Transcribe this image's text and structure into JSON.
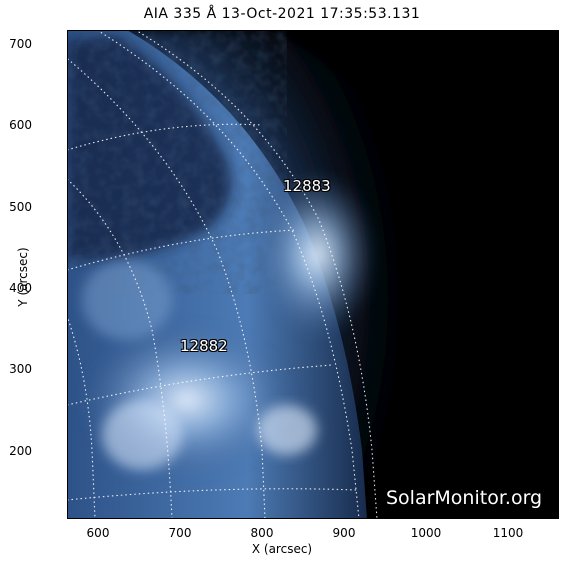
{
  "title": "AIA 335 Å 13-Oct-2021 17:35:53.131",
  "x_axis": {
    "label": "X (arcsec)",
    "range": [
      560,
      1160
    ],
    "ticks": [
      600,
      700,
      800,
      900,
      1000,
      1100
    ]
  },
  "y_axis": {
    "label": "Y (arcsec)",
    "range": [
      118,
      718
    ],
    "ticks": [
      200,
      300,
      400,
      500,
      600,
      700
    ]
  },
  "regions": [
    {
      "label": "12883",
      "x": 855,
      "y": 520
    },
    {
      "label": "12882",
      "x": 712,
      "y": 325
    }
  ],
  "watermark": "SolarMonitor.org",
  "colors": {
    "sky": "#000000",
    "disk_dark": "#0f1f3a",
    "disk_mid": "#39639b",
    "disk_bright": "#d9ecff",
    "frame": "#000000"
  }
}
